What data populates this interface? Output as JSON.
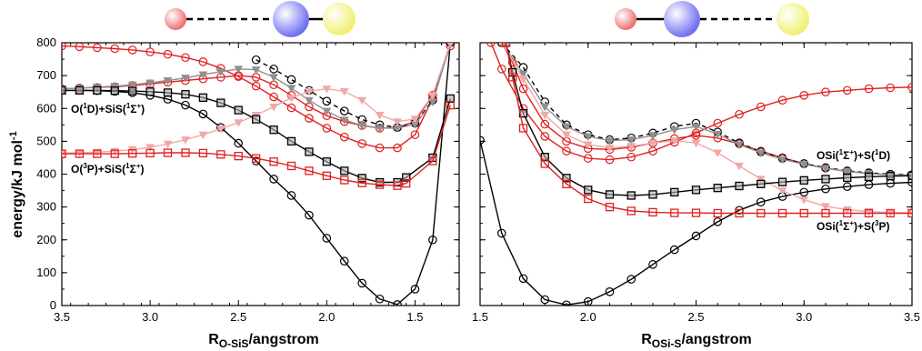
{
  "figure": {
    "ylabel": "energy/kJ mol",
    "ylabel_sup": "-1",
    "molecules": {
      "left": {
        "order": [
          "O",
          "Si",
          "S"
        ],
        "bonds": [
          "dashed",
          "solid"
        ]
      },
      "right": {
        "order": [
          "O",
          "Si",
          "S"
        ],
        "bonds": [
          "solid",
          "dashed"
        ]
      },
      "atom_colors": {
        "O": "#f07070",
        "Si": "#7070f0",
        "S": "#f0f070"
      }
    },
    "annotations": {
      "left_upper": [
        "O(",
        "1",
        "D)+SiS(",
        "1",
        "Σ",
        "+",
        ")"
      ],
      "left_lower": [
        "O(",
        "3",
        "P)+SiS(",
        "1",
        "Σ",
        "+",
        ")"
      ],
      "right_upper": [
        "OSi(",
        "1",
        "Σ",
        "+",
        ")+S(",
        "1",
        "D)"
      ],
      "right_lower": [
        "OSi(",
        "1",
        "Σ",
        "+",
        ")+S(",
        "3",
        "P)"
      ]
    }
  },
  "chart_data": [
    {
      "type": "line",
      "xlabel_main": "R",
      "xlabel_sub": "O-SiS",
      "xlabel_tail": "/angstrom",
      "ylabel": "energy/kJ mol-1",
      "xlim": [
        3.5,
        1.25
      ],
      "x_reversed": true,
      "ylim": [
        0,
        800
      ],
      "xticks": [
        3.5,
        3.0,
        2.5,
        2.0,
        1.5
      ],
      "xtick_labels": [
        "3.5",
        "3.0",
        "2.5",
        "2.0",
        "1.5"
      ],
      "yticks": [
        0,
        100,
        200,
        300,
        400,
        500,
        600,
        700,
        800
      ],
      "ytick_labels": [
        "0",
        "100",
        "200",
        "300",
        "400",
        "500",
        "600",
        "700",
        "800"
      ],
      "series": [
        {
          "color": "#000000",
          "marker": "circle",
          "dash": false,
          "x": [
            3.5,
            3.4,
            3.3,
            3.2,
            3.1,
            3.0,
            2.9,
            2.8,
            2.7,
            2.6,
            2.5,
            2.4,
            2.3,
            2.2,
            2.1,
            2.0,
            1.9,
            1.8,
            1.7,
            1.6,
            1.5,
            1.4,
            1.3
          ],
          "y": [
            655,
            655,
            654,
            652,
            648,
            640,
            628,
            610,
            583,
            542,
            494,
            440,
            385,
            335,
            275,
            205,
            135,
            68,
            20,
            3,
            50,
            200,
            800
          ]
        },
        {
          "color": "#e02020",
          "marker": "circle",
          "dash": false,
          "x": [
            3.5,
            3.4,
            3.3,
            3.2,
            3.1,
            3.0,
            2.9,
            2.8,
            2.7,
            2.6,
            2.5,
            2.4,
            2.3,
            2.2,
            2.1,
            2.0,
            1.9,
            1.8,
            1.7,
            1.6,
            1.5,
            1.4,
            1.3
          ],
          "y": [
            790,
            788,
            785,
            782,
            778,
            772,
            765,
            755,
            742,
            722,
            697,
            668,
            635,
            602,
            570,
            540,
            513,
            493,
            480,
            480,
            520,
            630,
            800
          ]
        },
        {
          "color": "#e02020",
          "marker": "circle",
          "dash": false,
          "x": [
            3.5,
            3.4,
            3.3,
            3.2,
            3.1,
            3.0,
            2.9,
            2.8,
            2.7,
            2.6,
            2.5,
            2.4,
            2.3,
            2.2,
            2.1,
            2.0,
            1.9,
            1.8,
            1.7,
            1.6,
            1.5,
            1.4,
            1.3
          ],
          "y": [
            660,
            662,
            664,
            666,
            670,
            675,
            680,
            685,
            690,
            695,
            700,
            695,
            672,
            640,
            605,
            578,
            560,
            548,
            540,
            542,
            560,
            640,
            790
          ]
        },
        {
          "color": "#000000",
          "marker": "circle",
          "dash": true,
          "x": [
            2.4,
            2.3,
            2.2,
            2.1,
            2.0,
            1.9,
            1.8,
            1.7,
            1.6,
            1.5,
            1.4,
            1.3
          ],
          "y": [
            748,
            720,
            688,
            655,
            622,
            592,
            566,
            550,
            542,
            555,
            625,
            800
          ]
        },
        {
          "color": "#909090",
          "marker": "triangle",
          "dash": false,
          "x": [
            3.5,
            3.4,
            3.3,
            3.2,
            3.1,
            3.0,
            2.9,
            2.8,
            2.7,
            2.6,
            2.5,
            2.4,
            2.3,
            2.2,
            2.1,
            2.0,
            1.9,
            1.8,
            1.7,
            1.6,
            1.5,
            1.4,
            1.3
          ],
          "y": [
            660,
            662,
            665,
            668,
            672,
            678,
            685,
            693,
            703,
            712,
            720,
            718,
            695,
            662,
            625,
            592,
            565,
            548,
            540,
            540,
            552,
            620,
            795
          ]
        },
        {
          "color": "#f0a8a8",
          "marker": "triangle",
          "dash": false,
          "x": [
            3.5,
            3.4,
            3.3,
            3.2,
            3.1,
            3.0,
            2.9,
            2.8,
            2.7,
            2.6,
            2.5,
            2.4,
            2.3,
            2.2,
            2.1,
            2.0,
            1.9,
            1.8,
            1.7,
            1.6,
            1.5,
            1.4,
            1.3
          ],
          "y": [
            464,
            465,
            467,
            470,
            475,
            482,
            492,
            505,
            520,
            538,
            557,
            580,
            605,
            632,
            652,
            660,
            652,
            625,
            580,
            560,
            568,
            640,
            800
          ]
        },
        {
          "color": "#000000",
          "marker": "square",
          "dash": false,
          "x": [
            3.5,
            3.4,
            3.3,
            3.2,
            3.1,
            3.0,
            2.9,
            2.8,
            2.7,
            2.6,
            2.5,
            2.4,
            2.3,
            2.2,
            2.1,
            2.0,
            1.9,
            1.8,
            1.7,
            1.6,
            1.55,
            1.4,
            1.3
          ],
          "y": [
            655,
            655,
            655,
            654,
            653,
            651,
            648,
            643,
            633,
            617,
            595,
            567,
            535,
            500,
            468,
            438,
            410,
            388,
            375,
            375,
            390,
            450,
            630
          ]
        },
        {
          "color": "#e02020",
          "marker": "square",
          "dash": false,
          "x": [
            3.5,
            3.4,
            3.3,
            3.2,
            3.1,
            3.0,
            2.9,
            2.8,
            2.7,
            2.6,
            2.5,
            2.4,
            2.3,
            2.2,
            2.1,
            2.0,
            1.9,
            1.8,
            1.7,
            1.6,
            1.55,
            1.4,
            1.3
          ],
          "y": [
            462,
            462,
            462,
            462,
            463,
            464,
            465,
            465,
            464,
            460,
            455,
            448,
            438,
            425,
            410,
            395,
            382,
            373,
            368,
            365,
            372,
            440,
            610
          ]
        }
      ]
    },
    {
      "type": "line",
      "xlabel_main": "R",
      "xlabel_sub": "OSi-S",
      "xlabel_tail": "/angstrom",
      "xlim": [
        1.5,
        3.5
      ],
      "x_reversed": false,
      "ylim": [
        0,
        800
      ],
      "xticks": [
        1.5,
        2.0,
        2.5,
        3.0,
        3.5
      ],
      "xtick_labels": [
        "1.5",
        "2.0",
        "2.5",
        "3.0",
        "3.5"
      ],
      "yticks": [
        0,
        100,
        200,
        300,
        400,
        500,
        600,
        700,
        800
      ],
      "series": [
        {
          "color": "#000000",
          "marker": "circle",
          "dash": false,
          "x": [
            1.5,
            1.6,
            1.7,
            1.8,
            1.9,
            2.0,
            2.1,
            2.2,
            2.3,
            2.4,
            2.5,
            2.6,
            2.7,
            2.8,
            2.9,
            3.0,
            3.1,
            3.2,
            3.3,
            3.4,
            3.5
          ],
          "y": [
            503,
            220,
            82,
            18,
            2,
            12,
            42,
            80,
            125,
            170,
            212,
            255,
            290,
            315,
            332,
            345,
            355,
            362,
            368,
            372,
            375
          ]
        },
        {
          "color": "#e02020",
          "marker": "circle",
          "dash": false,
          "x": [
            1.55,
            1.6,
            1.7,
            1.8,
            1.9,
            2.0,
            2.1,
            2.2,
            2.3,
            2.4,
            2.5,
            2.6,
            2.7,
            2.8,
            2.9,
            3.0,
            3.1,
            3.2,
            3.3,
            3.4,
            3.5
          ],
          "y": [
            800,
            720,
            600,
            515,
            470,
            448,
            444,
            452,
            470,
            497,
            525,
            555,
            582,
            605,
            625,
            640,
            650,
            655,
            660,
            663,
            665
          ]
        },
        {
          "color": "#e02020",
          "marker": "circle",
          "dash": false,
          "x": [
            1.6,
            1.65,
            1.7,
            1.8,
            1.9,
            2.0,
            2.1,
            2.2,
            2.3,
            2.4,
            2.5,
            2.6,
            2.7,
            2.8,
            2.9,
            3.0,
            3.1,
            3.2,
            3.3,
            3.4,
            3.5
          ],
          "y": [
            800,
            740,
            660,
            552,
            500,
            478,
            475,
            482,
            495,
            508,
            518,
            510,
            492,
            470,
            450,
            432,
            418,
            408,
            402,
            398,
            396
          ]
        },
        {
          "color": "#000000",
          "marker": "circle",
          "dash": true,
          "x": [
            1.6,
            1.7,
            1.8,
            1.9,
            2.0,
            2.1,
            2.2,
            2.3,
            2.4,
            2.5,
            2.6,
            2.7,
            2.8,
            2.9,
            3.0,
            3.1,
            3.2,
            3.3,
            3.4,
            3.5
          ],
          "y": [
            800,
            725,
            620,
            550,
            520,
            505,
            510,
            525,
            545,
            555,
            528,
            495,
            468,
            448,
            432,
            420,
            410,
            404,
            400,
            398
          ]
        },
        {
          "color": "#909090",
          "marker": "triangle",
          "dash": false,
          "x": [
            1.6,
            1.7,
            1.8,
            1.9,
            2.0,
            2.1,
            2.2,
            2.3,
            2.4,
            2.5,
            2.6,
            2.7,
            2.8,
            2.9,
            3.0,
            3.1,
            3.2,
            3.3,
            3.4,
            3.5
          ],
          "y": [
            800,
            705,
            605,
            545,
            515,
            502,
            505,
            518,
            535,
            545,
            522,
            490,
            465,
            445,
            430,
            418,
            408,
            402,
            398,
            396
          ]
        },
        {
          "color": "#f0a8a8",
          "marker": "triangle",
          "dash": false,
          "x": [
            1.6,
            1.7,
            1.8,
            1.9,
            2.0,
            2.1,
            2.2,
            2.3,
            2.4,
            2.5,
            2.6,
            2.7,
            2.8,
            2.9,
            3.0,
            3.1,
            3.2,
            3.3,
            3.4,
            3.5
          ],
          "y": [
            800,
            690,
            580,
            520,
            490,
            480,
            485,
            495,
            502,
            495,
            465,
            425,
            385,
            350,
            322,
            302,
            292,
            286,
            283,
            282
          ]
        },
        {
          "color": "#000000",
          "marker": "square",
          "dash": false,
          "x": [
            1.62,
            1.65,
            1.7,
            1.8,
            1.9,
            2.0,
            2.1,
            2.2,
            2.3,
            2.4,
            2.5,
            2.6,
            2.7,
            2.8,
            2.9,
            3.0,
            3.1,
            3.2,
            3.3,
            3.4,
            3.5
          ],
          "y": [
            800,
            710,
            585,
            452,
            388,
            352,
            338,
            335,
            338,
            345,
            352,
            358,
            364,
            370,
            376,
            381,
            385,
            389,
            392,
            394,
            395
          ]
        },
        {
          "color": "#e02020",
          "marker": "square",
          "dash": false,
          "x": [
            1.62,
            1.65,
            1.7,
            1.8,
            1.9,
            2.0,
            2.1,
            2.2,
            2.3,
            2.4,
            2.5,
            2.6,
            2.7,
            2.8,
            2.9,
            3.0,
            3.1,
            3.2,
            3.3,
            3.4,
            3.5
          ],
          "y": [
            800,
            695,
            540,
            432,
            370,
            325,
            300,
            288,
            284,
            282,
            282,
            281,
            281,
            281,
            281,
            281,
            281,
            281,
            281,
            281,
            281
          ]
        }
      ]
    }
  ]
}
